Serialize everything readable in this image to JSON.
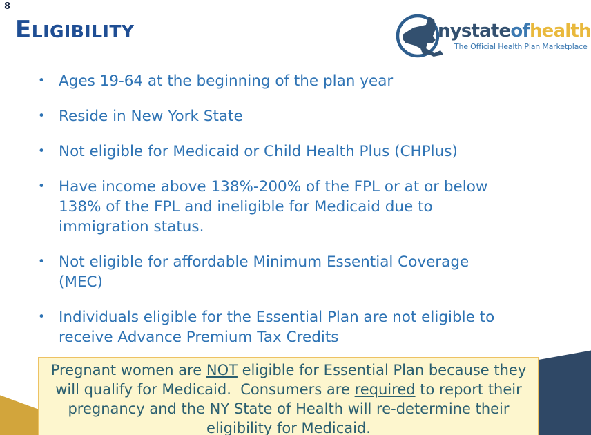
{
  "slide_number": "8",
  "header": {
    "title_initial": "E",
    "title_rest": "LIGIBILITY"
  },
  "logo": {
    "brand_part1": "nystate",
    "brand_part2": "of",
    "brand_part3": "health",
    "trademark": "™",
    "tagline": "The Official Health Plan Marketplace",
    "colors": {
      "slate": "#33506F",
      "blue": "#3C79B1",
      "gold": "#E9B93D"
    }
  },
  "list": {
    "bullet_char": "•",
    "items": [
      "Ages 19-64 at the beginning of the plan year",
      "Reside in New York State",
      "Not eligible for Medicaid or Child Health Plus (CHPlus)",
      "Have income above 138%-200% of the FPL or at or below\n138% of the FPL and ineligible for Medicaid due to\nimmigration status.",
      "Not eligible for affordable Minimum Essential Coverage\n(MEC)",
      "Individuals eligible for the Essential Plan are not eligible to\nreceive Advance Premium Tax Credits"
    ]
  },
  "callout": {
    "segments": [
      {
        "text": "Pregnant women are "
      },
      {
        "text": "NOT",
        "underline": true
      },
      {
        "text": " eligible for Essential Plan because they\nwill qualify for Medicaid.  Consumers are "
      },
      {
        "text": "required",
        "underline": true
      },
      {
        "text": " to report their\npregnancy and the NY State of Health will re-determine their\neligibility for Medicaid."
      }
    ]
  },
  "colors": {
    "title": "#1F4E94",
    "bullet_text": "#2E73B4",
    "callout_bg": "#FDF6CE",
    "callout_border": "#EDC263",
    "callout_text": "#2B5F70",
    "corner_navy": "#2F4866",
    "corner_gold": "#D2A53C"
  }
}
